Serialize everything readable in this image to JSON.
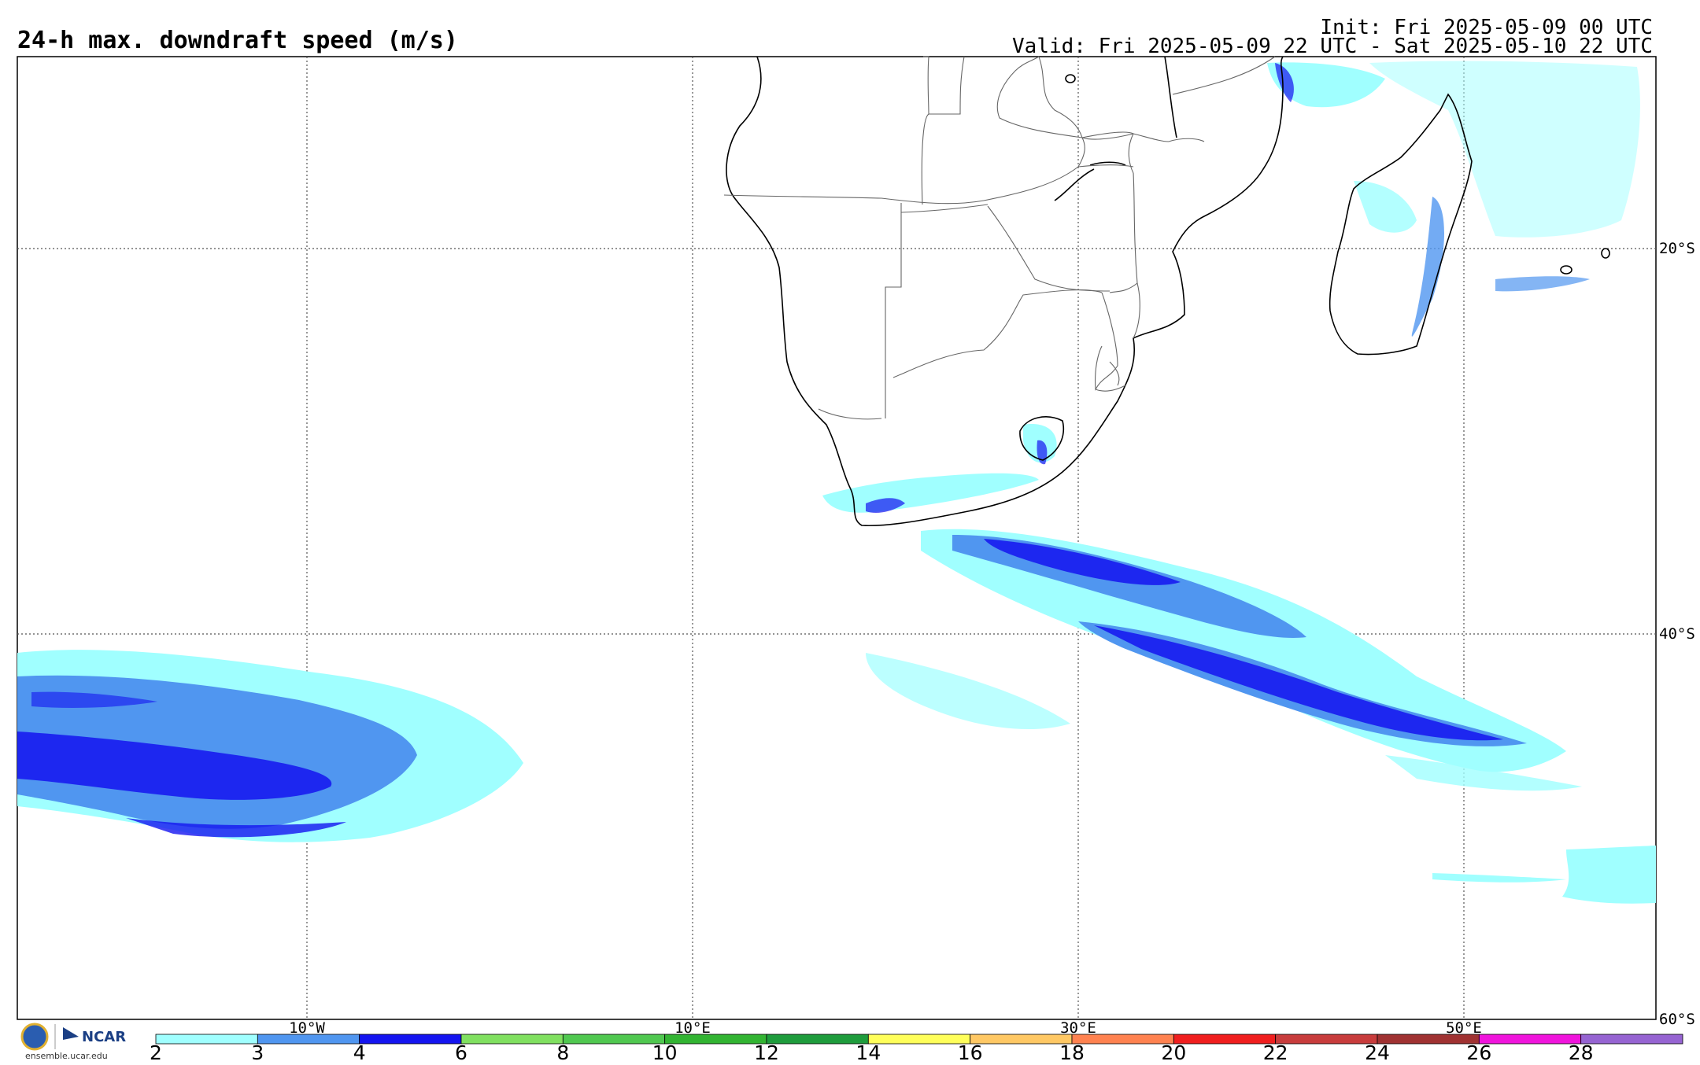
{
  "header": {
    "title": "24-h max. downdraft speed (m/s)",
    "init": "Init: Fri 2025-05-09 00 UTC",
    "valid": "Valid: Fri 2025-05-09 22 UTC - Sat 2025-05-10 22 UTC"
  },
  "map": {
    "lat_labels": [
      "20°S",
      "40°S",
      "60°S"
    ],
    "lon_labels": [
      "10°W",
      "10°E",
      "30°E",
      "50°E"
    ],
    "land_color": "#ffffff",
    "ocean_color": "#ffffff"
  },
  "colorbar": {
    "ticks": [
      "2",
      "3",
      "4",
      "6",
      "8",
      "10",
      "12",
      "14",
      "16",
      "18",
      "20",
      "22",
      "24",
      "26",
      "28"
    ],
    "colors": [
      "#a0ffff",
      "#5096f0",
      "#1414f0",
      "#80e060",
      "#50c850",
      "#32b432",
      "#1e9c3c",
      "#ffff5a",
      "#ffc864",
      "#ff8250",
      "#f01e1e",
      "#c83c3c",
      "#a03232",
      "#f014dc",
      "#9664d2"
    ]
  },
  "logos": {
    "nsf": "NSF",
    "ncar": "NCAR",
    "url": "ensemble.ucar.edu"
  }
}
